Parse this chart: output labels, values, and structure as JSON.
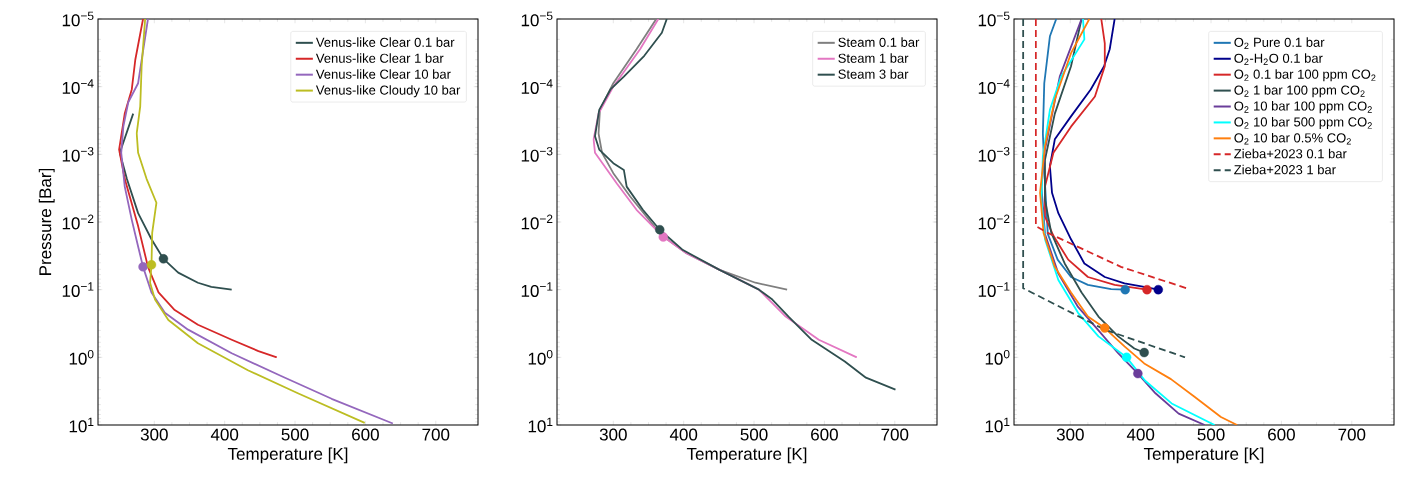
{
  "chart_data": [
    {
      "type": "line",
      "xlabel": "Temperature [K]",
      "ylabel": "Pressure [Bar]",
      "xlim": [
        220,
        760
      ],
      "ylim": [
        10,
        1e-05
      ],
      "log": "y",
      "legend": "top right",
      "xticks": [
        300,
        400,
        500,
        600,
        700
      ],
      "yticks": [
        {
          "value": 1e-05,
          "label": "10$^{−5}$"
        },
        {
          "value": 0.0001,
          "label": "10$^{−4}$"
        },
        {
          "value": 0.001,
          "label": "10$^{−3}$"
        },
        {
          "value": 0.01,
          "label": "10$^{−2}$"
        },
        {
          "value": 0.1,
          "label": "10$^{−1}$"
        },
        {
          "value": 1,
          "label": "10$^{0}$"
        },
        {
          "value": 10,
          "label": "10$^{1}$"
        }
      ],
      "series": [
        {
          "name": "Venus-like Clear 0.1 bar",
          "color": "#2f4f4f",
          "x": [
            270,
            251,
            261,
            277,
            296,
            313,
            334,
            362,
            381,
            410
          ],
          "values": [
            0.00025,
            0.00095,
            0.0023,
            0.0074,
            0.018,
            0.035,
            0.056,
            0.079,
            0.091,
            0.1
          ]
        },
        {
          "name": "Venus-like Clear 1 bar",
          "color": "#d62728",
          "x": [
            284,
            273,
            268,
            258,
            250,
            258,
            277,
            291,
            306,
            329,
            362,
            410,
            448,
            474
          ],
          "values": [
            1e-05,
            4e-05,
            0.00011,
            0.00025,
            0.00085,
            0.0023,
            0.0115,
            0.046,
            0.11,
            0.2,
            0.33,
            0.55,
            0.81,
            1
          ]
        },
        {
          "name": "Venus-like Clear 10 bar",
          "color": "#9467bd",
          "x": [
            291,
            277,
            263,
            256,
            253,
            258,
            268,
            277,
            284,
            296,
            315,
            348,
            410,
            481,
            552,
            639
          ],
          "values": [
            1e-05,
            8.9e-05,
            0.00017,
            0.00039,
            0.00095,
            0.003,
            0.0093,
            0.023,
            0.046,
            0.11,
            0.22,
            0.39,
            0.87,
            1.9,
            4.1,
            9.5
          ]
        },
        {
          "name": "Venus-like Cloudy 10 bar",
          "color": "#bcbd22",
          "x": [
            287,
            282,
            280,
            275,
            277,
            289,
            303,
            297,
            296,
            294,
            301,
            320,
            362,
            433,
            504,
            599
          ],
          "values": [
            1e-05,
            5e-05,
            0.000195,
            0.00049,
            0.00095,
            0.0023,
            0.0052,
            0.0145,
            0.043,
            0.079,
            0.14,
            0.28,
            0.62,
            1.55,
            3.4,
            9.3
          ]
        },
        {
          "type": "scatter",
          "marker": "circle",
          "x": [
            313,
            284,
            296
          ],
          "values": [
            0.035,
            0.046,
            0.043
          ],
          "colors": [
            "#2f4f4f",
            "#9467bd",
            "#bcbd22"
          ]
        }
      ]
    },
    {
      "type": "line",
      "xlabel": "Temperature [K]",
      "xlim": [
        220,
        760
      ],
      "ylim": [
        10,
        1e-05
      ],
      "log": "y",
      "legend": "top right",
      "xticks": [
        300,
        400,
        500,
        600,
        700
      ],
      "yticks": [
        {
          "value": 1e-05,
          "label": "10$^{−5}$"
        },
        {
          "value": 0.0001,
          "label": "10$^{−4}$"
        },
        {
          "value": 0.001,
          "label": "10$^{−3}$"
        },
        {
          "value": 0.01,
          "label": "10$^{−2}$"
        },
        {
          "value": 0.1,
          "label": "10$^{−1}$"
        },
        {
          "value": 1,
          "label": "10$^{0}$"
        },
        {
          "value": 10,
          "label": "10$^{1}$"
        }
      ],
      "series": [
        {
          "name": "Steam 0.1 bar",
          "color": "#7f7f7f",
          "x": [
            361,
            333,
            300,
            281,
            279,
            284,
            300,
            324,
            347,
            368,
            404,
            451,
            502,
            547
          ],
          "values": [
            1e-05,
            2.8e-05,
            8.9e-05,
            0.00022,
            0.00049,
            0.00095,
            0.0019,
            0.0042,
            0.0083,
            0.0155,
            0.029,
            0.051,
            0.079,
            0.1
          ]
        },
        {
          "name": "Steam 1 bar",
          "color": "#e377c2",
          "x": [
            364,
            338,
            300,
            279,
            272,
            274,
            305,
            333,
            371,
            404,
            451,
            507,
            545,
            592,
            646
          ],
          "values": [
            1e-05,
            2.8e-05,
            0.0001,
            0.00025,
            0.0006,
            0.00095,
            0.0027,
            0.0066,
            0.0166,
            0.029,
            0.051,
            0.1,
            0.25,
            0.55,
            1
          ]
        },
        {
          "name": "Steam 3 bar",
          "color": "#2f4f4f",
          "x": [
            376,
            369,
            344,
            315,
            296,
            280,
            274,
            280,
            300,
            315,
            319,
            342,
            366,
            399,
            451,
            507,
            526,
            549,
            582,
            629,
            659,
            701
          ],
          "values": [
            1e-05,
            1.6e-05,
            3.5e-05,
            7.1e-05,
            0.00011,
            0.00022,
            0.00054,
            0.00085,
            0.00135,
            0.0017,
            0.003,
            0.0066,
            0.013,
            0.026,
            0.051,
            0.1,
            0.14,
            0.25,
            0.55,
            1.15,
            2.0,
            3.0
          ]
        },
        {
          "type": "scatter",
          "marker": "circle",
          "x": [
            371,
            366
          ],
          "values": [
            0.0166,
            0.013
          ],
          "colors": [
            "#e377c2",
            "#2f4f4f"
          ]
        }
      ]
    },
    {
      "type": "line",
      "xlabel": "Temperature [K]",
      "xlim": [
        220,
        760
      ],
      "ylim": [
        10,
        1e-05
      ],
      "log": "y",
      "legend": "top right",
      "xticks": [
        300,
        400,
        500,
        600,
        700
      ],
      "yticks": [
        {
          "value": 1e-05,
          "label": "10$^{−5}$"
        },
        {
          "value": 0.0001,
          "label": "10$^{−4}$"
        },
        {
          "value": 0.001,
          "label": "10$^{−3}$"
        },
        {
          "value": 0.01,
          "label": "10$^{−2}$"
        },
        {
          "value": 0.1,
          "label": "10$^{−1}$"
        },
        {
          "value": 1,
          "label": "10$^{0}$"
        },
        {
          "value": 10,
          "label": "10$^{1}$"
        }
      ],
      "series": [
        {
          "name": "O$_{2}$ Pure 0.1 bar",
          "color": "#1f77b4",
          "x": [
            280,
            271,
            263,
            261,
            264,
            268,
            282,
            301,
            325,
            358,
            378
          ],
          "values": [
            1e-05,
            1.8e-05,
            8.9e-05,
            0.00049,
            0.0027,
            0.015,
            0.036,
            0.065,
            0.085,
            0.098,
            0.1
          ]
        },
        {
          "name": "O$_{2}$-H$_{2}$O 0.1 bar",
          "color": "#00008b",
          "x": [
            363,
            356,
            348,
            329,
            301,
            278,
            271,
            274,
            283,
            301,
            320,
            349,
            377,
            405,
            425
          ],
          "values": [
            1e-05,
            2.8e-05,
            5e-05,
            0.00011,
            0.000275,
            0.0006,
            0.0015,
            0.0037,
            0.0074,
            0.018,
            0.041,
            0.065,
            0.081,
            0.091,
            0.1
          ]
        },
        {
          "name": "O$_{2}$ 0.1 bar 100 ppm CO$_{2}$",
          "color": "#d62728",
          "x": [
            344,
            349,
            349,
            335,
            301,
            276,
            264,
            264,
            276,
            297,
            325,
            363,
            409
          ],
          "values": [
            1e-05,
            2.3e-05,
            5e-05,
            0.00014,
            0.00039,
            0.00095,
            0.003,
            0.0083,
            0.016,
            0.036,
            0.065,
            0.085,
            0.1
          ]
        },
        {
          "name": "O$_{2}$ 1 bar 100 ppm CO$_{2}$",
          "color": "#2f4f4f",
          "x": [
            316,
            301,
            278,
            264,
            264,
            273,
            292,
            316,
            340,
            368,
            391,
            405
          ],
          "values": [
            1e-05,
            5e-05,
            0.00025,
            0.0012,
            0.0047,
            0.0145,
            0.041,
            0.11,
            0.25,
            0.49,
            0.74,
            0.85
          ]
        },
        {
          "name": "O$_{2}$ 10 bar 100 ppm CO$_{2}$",
          "color": "#6a3d9a",
          "x": [
            316,
            285,
            271,
            264,
            259,
            264,
            283,
            311,
            340,
            368,
            396,
            421,
            454,
            491
          ],
          "values": [
            1e-05,
            7.1e-05,
            null,
            0.00085,
            0.003,
            0.015,
            0.058,
            0.18,
            0.4,
            0.87,
            1.74,
            3.4,
            6.8,
            10
          ]
        },
        {
          "name": "O$_{2}$ 10 bar 500 ppm CO$_{2}$",
          "color": "#00ffff",
          "x": [
            318,
            320,
            287,
            271,
            261,
            259,
            264,
            283,
            311,
            340,
            380,
            406,
            444,
            505
          ],
          "values": [
            1e-05,
            2e-05,
            7.1e-05,
            0.00022,
            0.00107,
            0.0047,
            0.018,
            0.072,
            0.22,
            0.49,
            1,
            2.2,
            4.8,
            10
          ]
        },
        {
          "name": "O$_{2}$ 10 bar 0.5% CO$_{2}$",
          "color": "#ff7f0e",
          "x": [
            327,
            301,
            278,
            264,
            257,
            262,
            278,
            301,
            325,
            349,
            377,
            405,
            443,
            476,
            514,
            537
          ],
          "values": [
            1e-05,
            3.2e-05,
            0.000155,
            0.00076,
            0.0037,
            0.0145,
            0.046,
            0.11,
            0.25,
            0.37,
            0.69,
            1.23,
            2.1,
            3.8,
            7.6,
            10
          ]
        },
        {
          "name": "Zieba+2023 0.1 bar",
          "color": "#d62728",
          "line_style": "dashed",
          "x": [
            251,
            251,
            268,
            372,
            465
          ],
          "values": [
            1e-05,
            0.0115,
            0.0145,
            0.046,
            0.095
          ]
        },
        {
          "name": "Zieba+2023 1 bar",
          "color": "#2f4f4f",
          "line_style": "dashed",
          "x": [
            233,
            233,
            245,
            349,
            463
          ],
          "values": [
            1e-05,
            0.095,
            0.11,
            0.39,
            1.0
          ]
        },
        {
          "type": "scatter",
          "marker": "circle",
          "x": [
            378,
            425,
            409,
            405,
            396,
            380,
            349
          ],
          "values": [
            0.1,
            0.1,
            0.1,
            0.85,
            1.74,
            1,
            0.37
          ],
          "colors": [
            "#1f77b4",
            "#00008b",
            "#d62728",
            "#2f4f4f",
            "#6a3d9a",
            "#00ffff",
            "#ff7f0e"
          ]
        }
      ]
    }
  ]
}
